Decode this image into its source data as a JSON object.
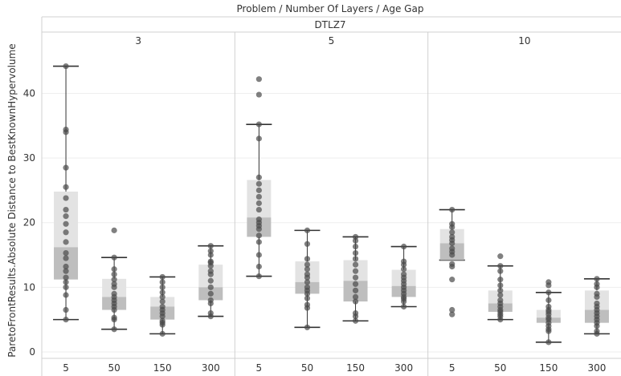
{
  "chart_data": {
    "type": "box-plot",
    "header": "Problem / Number Of Layers / Age Gap",
    "problem": "DTLZ7",
    "ylabel": "ParetoFrontResults.Absolute Distance to BestKnownHypervolume",
    "ylim": [
      -1,
      47
    ],
    "yticks": [
      0,
      10,
      20,
      30,
      40
    ],
    "grid": true,
    "panels": [
      {
        "label": "3",
        "groups": [
          {
            "x": "5",
            "whisker_low": 5.0,
            "q1": 11.2,
            "median": 16.2,
            "q3": 24.8,
            "whisker_high": 44.2,
            "points": [
              5.0,
              6.5,
              8.8,
              10.0,
              10.8,
              11.5,
              12.5,
              13.2,
              14.5,
              15.3,
              17.0,
              18.5,
              19.8,
              21.0,
              22.0,
              23.8,
              25.5,
              28.5,
              34.0,
              34.4,
              44.2
            ]
          },
          {
            "x": "50",
            "whisker_low": 3.5,
            "q1": 6.5,
            "median": 8.5,
            "q3": 11.3,
            "whisker_high": 14.6,
            "points": [
              3.5,
              5.0,
              5.3,
              6.5,
              7.0,
              7.5,
              8.0,
              8.5,
              9.0,
              10.0,
              10.5,
              11.2,
              12.0,
              12.8,
              14.6,
              18.8
            ]
          },
          {
            "x": "150",
            "whisker_low": 2.8,
            "q1": 5.0,
            "median": 7.0,
            "q3": 8.5,
            "whisker_high": 11.6,
            "points": [
              2.8,
              4.2,
              4.5,
              4.8,
              5.5,
              6.0,
              6.5,
              7.0,
              7.8,
              8.5,
              9.2,
              10.0,
              10.8,
              11.6
            ]
          },
          {
            "x": "300",
            "whisker_low": 5.5,
            "q1": 8.0,
            "median": 10.0,
            "q3": 13.5,
            "whisker_high": 16.4,
            "points": [
              5.5,
              6.0,
              7.5,
              8.0,
              9.0,
              10.0,
              11.0,
              12.0,
              12.5,
              13.3,
              13.8,
              14.0,
              15.0,
              15.6,
              16.4
            ]
          }
        ]
      },
      {
        "label": "5",
        "groups": [
          {
            "x": "5",
            "whisker_low": 11.7,
            "q1": 17.8,
            "median": 20.8,
            "q3": 26.6,
            "whisker_high": 35.2,
            "points": [
              11.7,
              13.2,
              15.0,
              17.0,
              18.0,
              19.0,
              19.5,
              20.0,
              20.5,
              22.0,
              23.0,
              24.0,
              25.0,
              26.0,
              27.0,
              33.0,
              35.2,
              39.8,
              42.2
            ]
          },
          {
            "x": "50",
            "whisker_low": 3.8,
            "q1": 9.0,
            "median": 10.8,
            "q3": 14.0,
            "whisker_high": 18.8,
            "points": [
              3.8,
              6.8,
              7.3,
              8.3,
              9.0,
              9.5,
              10.0,
              10.8,
              11.5,
              12.0,
              12.8,
              13.5,
              14.4,
              16.7,
              18.8
            ]
          },
          {
            "x": "150",
            "whisker_low": 4.8,
            "q1": 7.8,
            "median": 11.0,
            "q3": 14.2,
            "whisker_high": 17.8,
            "points": [
              4.8,
              5.5,
              6.0,
              7.8,
              8.5,
              9.5,
              10.5,
              11.5,
              12.5,
              13.5,
              14.4,
              15.3,
              16.3,
              17.2,
              17.8
            ]
          },
          {
            "x": "300",
            "whisker_low": 7.0,
            "q1": 8.5,
            "median": 10.2,
            "q3": 12.7,
            "whisker_high": 16.3,
            "points": [
              7.0,
              7.8,
              8.2,
              8.5,
              9.0,
              9.5,
              10.0,
              10.5,
              11.0,
              11.5,
              12.0,
              12.8,
              13.5,
              14.0,
              16.3
            ]
          }
        ]
      },
      {
        "label": "10",
        "groups": [
          {
            "x": "5",
            "whisker_low": 14.2,
            "q1": 14.2,
            "median": 16.8,
            "q3": 19.0,
            "whisker_high": 22.0,
            "points": [
              5.8,
              6.5,
              11.2,
              13.2,
              13.6,
              15.0,
              15.5,
              16.0,
              16.8,
              17.3,
              17.8,
              18.5,
              19.3,
              19.8,
              22.0
            ]
          },
          {
            "x": "50",
            "whisker_low": 5.0,
            "q1": 6.2,
            "median": 7.5,
            "q3": 9.5,
            "whisker_high": 13.3,
            "points": [
              5.0,
              5.5,
              5.8,
              6.2,
              6.5,
              7.0,
              7.5,
              8.0,
              8.8,
              9.5,
              10.3,
              11.2,
              12.5,
              13.3,
              14.8
            ]
          },
          {
            "x": "150",
            "whisker_low": 1.5,
            "q1": 4.5,
            "median": 5.3,
            "q3": 6.5,
            "whisker_high": 9.2,
            "points": [
              1.5,
              3.2,
              3.5,
              4.0,
              4.5,
              5.0,
              5.3,
              5.8,
              6.2,
              6.5,
              7.0,
              8.0,
              9.2,
              10.3,
              10.8
            ]
          },
          {
            "x": "300",
            "whisker_low": 2.8,
            "q1": 4.5,
            "median": 6.5,
            "q3": 9.5,
            "whisker_high": 11.3,
            "points": [
              2.8,
              3.2,
              4.0,
              4.5,
              5.0,
              5.5,
              6.0,
              6.5,
              7.0,
              7.5,
              8.5,
              9.0,
              10.0,
              10.5,
              11.3
            ]
          }
        ]
      }
    ]
  },
  "colors": {
    "point": "#4a4a4a",
    "box_upper": "#e3e3e3",
    "box_lower": "#bebebe",
    "whisker": "#333333",
    "grid": "#eeeeee",
    "divider": "#d0d0d0",
    "axis_text": "#555555"
  }
}
